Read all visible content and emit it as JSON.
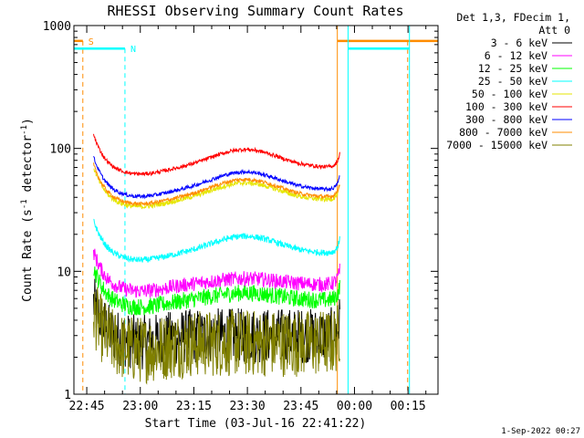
{
  "chart_data": {
    "type": "line",
    "title": "RHESSI Observing Summary Count Rates",
    "xlabel": "Start Time (03-Jul-16 22:41:22)",
    "ylabel": "Count Rate (s",
    "ylabel_sup1": "-1",
    "ylabel_mid": " detector",
    "ylabel_sup2": "-1",
    "ylabel_end": ")",
    "yscale": "log",
    "ylim": [
      1,
      1000
    ],
    "yticks": [
      1,
      10,
      100,
      1000
    ],
    "xlim_minutes": [
      0,
      102
    ],
    "xticks": [
      {
        "label": "22:45",
        "min": 3.6
      },
      {
        "label": "23:00",
        "min": 18.6
      },
      {
        "label": "23:15",
        "min": 33.6
      },
      {
        "label": "23:30",
        "min": 48.6
      },
      {
        "label": "23:45",
        "min": 63.6
      },
      {
        "label": "00:00",
        "min": 78.6
      },
      {
        "label": "00:15",
        "min": 93.6
      }
    ],
    "legend_header": [
      "Det 1,3, FDecim 1,",
      "Att 0"
    ],
    "series": [
      {
        "name": "3 - 6 keV",
        "color": "#000000",
        "min_start": 5.5,
        "min_end": 74.5,
        "base": 3.0,
        "bump": 0.0,
        "noise": 0.45
      },
      {
        "name": "6 - 12 keV",
        "color": "#ff00ff",
        "min_start": 5.5,
        "min_end": 74.5,
        "base": 7.8,
        "bump": 0.12,
        "noise": 0.12
      },
      {
        "name": "12 - 25 keV",
        "color": "#00ff00",
        "min_start": 5.5,
        "min_end": 74.5,
        "base": 5.8,
        "bump": 0.15,
        "noise": 0.14
      },
      {
        "name": "25 - 50 keV",
        "color": "#00ffff",
        "min_start": 5.5,
        "min_end": 74.5,
        "base": 14.0,
        "bump": 0.38,
        "noise": 0.05
      },
      {
        "name": "50 - 100 keV",
        "color": "#e6e600",
        "min_start": 5.5,
        "min_end": 74.5,
        "base": 38.0,
        "bump": 0.38,
        "noise": 0.04
      },
      {
        "name": "100 - 300 keV",
        "color": "#ff0000",
        "min_start": 5.5,
        "min_end": 74.5,
        "base": 70.0,
        "bump": 0.4,
        "noise": 0.03
      },
      {
        "name": "300 - 800 keV",
        "color": "#0000ff",
        "min_start": 5.5,
        "min_end": 74.5,
        "base": 46.0,
        "bump": 0.4,
        "noise": 0.03
      },
      {
        "name": "800 - 7000 keV",
        "color": "#ff8c00",
        "min_start": 5.5,
        "min_end": 74.5,
        "base": 40.0,
        "bump": 0.4,
        "noise": 0.03
      },
      {
        "name": "7000 - 15000 keV",
        "color": "#808000",
        "min_start": 5.5,
        "min_end": 74.5,
        "base": 2.6,
        "bump": 0.0,
        "noise": 0.55
      }
    ],
    "flags": [
      {
        "label": "S",
        "color": "#ff8c00",
        "level": 750,
        "segments": [
          [
            0,
            2.5
          ],
          [
            73.8,
            102
          ]
        ],
        "dashed_at": [
          2.5,
          93.5
        ],
        "solid_at": [
          73.8
        ]
      },
      {
        "label": "N",
        "color": "#00ffff",
        "level": 650,
        "segments": [
          [
            0,
            14.3
          ],
          [
            76.8,
            94
          ]
        ],
        "dashed_at": [
          14.3
        ],
        "solid_at": [
          -0.1,
          76.8,
          94
        ]
      }
    ]
  },
  "footer": {
    "date": "1-Sep-2022 00:27"
  }
}
